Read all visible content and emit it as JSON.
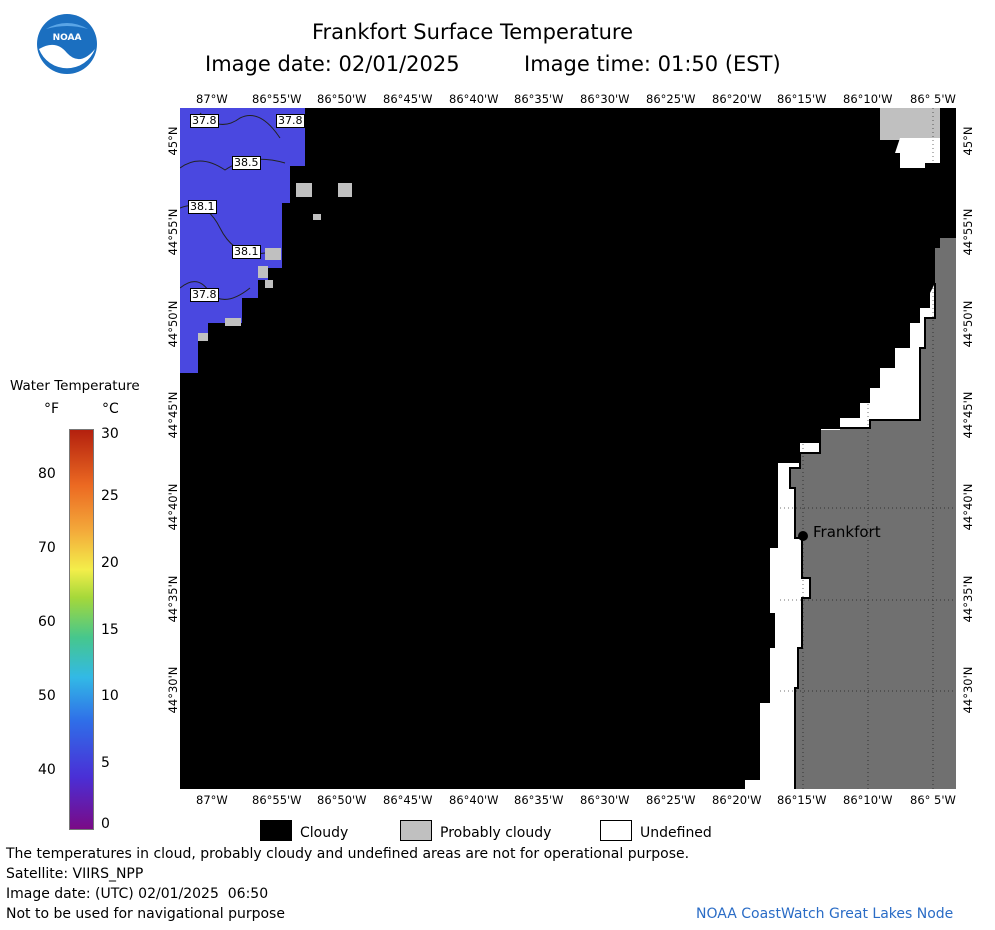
{
  "header": {
    "logo_text": "NOAA",
    "title": "Frankfort Surface Temperature",
    "image_date": "Image date: 02/01/2025",
    "image_time": "Image time: 01:50 (EST)"
  },
  "map": {
    "top_lon_labels": [
      "87°W",
      "86°55'W",
      "86°50'W",
      "86°45'W",
      "86°40'W",
      "86°35'W",
      "86°30'W",
      "86°25'W",
      "86°20'W",
      "86°15'W",
      "86°10'W",
      "86° 5'W"
    ],
    "bottom_lon_labels": [
      "87°W",
      "86°55'W",
      "86°50'W",
      "86°45'W",
      "86°40'W",
      "86°35'W",
      "86°30'W",
      "86°25'W",
      "86°20'W",
      "86°15'W",
      "86°10'W",
      "86° 5'W"
    ],
    "lat_labels": [
      "45°N",
      "44°55'N",
      "44°50'N",
      "44°45'N",
      "44°40'N",
      "44°35'N",
      "44°30'N"
    ],
    "contour_labels": [
      "37.8",
      "37.8",
      "38.5",
      "38.1",
      "38.1",
      "37.8"
    ],
    "city": "Frankfort",
    "colors": {
      "cloudy": "#000000",
      "probably_cloudy": "#c0c0c0",
      "undefined": "#ffffff",
      "land": "#707070",
      "water_temp": "#4a48e0"
    }
  },
  "scale": {
    "title": "Water Temperature",
    "unit_f": "°F",
    "unit_c": "°C",
    "f_values": [
      "80",
      "70",
      "60",
      "50",
      "40"
    ],
    "c_values": [
      "30",
      "25",
      "20",
      "15",
      "10",
      "5",
      "0"
    ]
  },
  "legend": {
    "items": [
      {
        "label": "Cloudy",
        "color": "#000000"
      },
      {
        "label": "Probably cloudy",
        "color": "#c0c0c0"
      },
      {
        "label": "Undefined",
        "color": "#ffffff"
      }
    ]
  },
  "footer": {
    "note": "The temperatures in cloud, probably cloudy and undefined areas are not for operational purpose.",
    "satellite": "Satellite: VIIRS_NPP",
    "image_date_utc": "Image date: (UTC) 02/01/2025  06:50",
    "nav_warning": "Not to be used for navigational purpose",
    "credit": "NOAA CoastWatch Great Lakes Node"
  }
}
